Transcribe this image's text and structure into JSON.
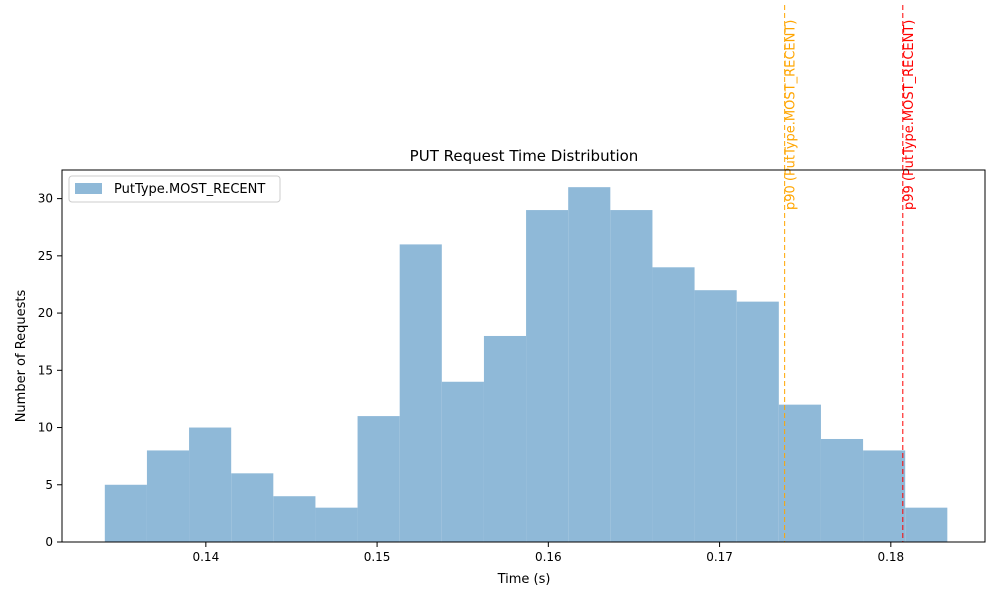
{
  "chart_data": {
    "type": "bar",
    "title": "PUT Request Time Distribution",
    "xlabel": "Time (s)",
    "ylabel": "Number of Requests",
    "xlim": [
      0.1316,
      0.1855
    ],
    "ylim": [
      0,
      32.5
    ],
    "xticks": [
      {
        "value": 0.14,
        "label": "0.14"
      },
      {
        "value": 0.15,
        "label": "0.15"
      },
      {
        "value": 0.16,
        "label": "0.16"
      },
      {
        "value": 0.17,
        "label": "0.17"
      },
      {
        "value": 0.18,
        "label": "0.18"
      }
    ],
    "yticks": [
      {
        "value": 0,
        "label": "0"
      },
      {
        "value": 5,
        "label": "5"
      },
      {
        "value": 10,
        "label": "10"
      },
      {
        "value": 15,
        "label": "15"
      },
      {
        "value": 20,
        "label": "20"
      },
      {
        "value": 25,
        "label": "25"
      },
      {
        "value": 30,
        "label": "30"
      }
    ],
    "grid": false,
    "legend": {
      "placement": "upper-left",
      "entries": [
        "PutType.MOST_RECENT"
      ]
    },
    "series": [
      {
        "name": "PutType.MOST_RECENT",
        "color": "#8fb9d8",
        "bin_edges": [
          0.1341,
          0.13656,
          0.13902,
          0.14148,
          0.14394,
          0.1464,
          0.14886,
          0.15132,
          0.15378,
          0.15624,
          0.1587,
          0.16116,
          0.16362,
          0.16608,
          0.16854,
          0.171,
          0.17346,
          0.17592,
          0.17838,
          0.18084,
          0.1833
        ],
        "values": [
          5,
          8,
          10,
          6,
          4,
          3,
          11,
          26,
          14,
          18,
          29,
          31,
          29,
          24,
          22,
          21,
          12,
          9,
          8,
          3
        ]
      }
    ],
    "percentile_lines": [
      {
        "label": "p90 (PutType.MOST_RECENT)",
        "value": 0.1738,
        "color": "#ffa500"
      },
      {
        "label": "p99 (PutType.MOST_RECENT)",
        "value": 0.1807,
        "color": "#ff0000"
      }
    ]
  }
}
